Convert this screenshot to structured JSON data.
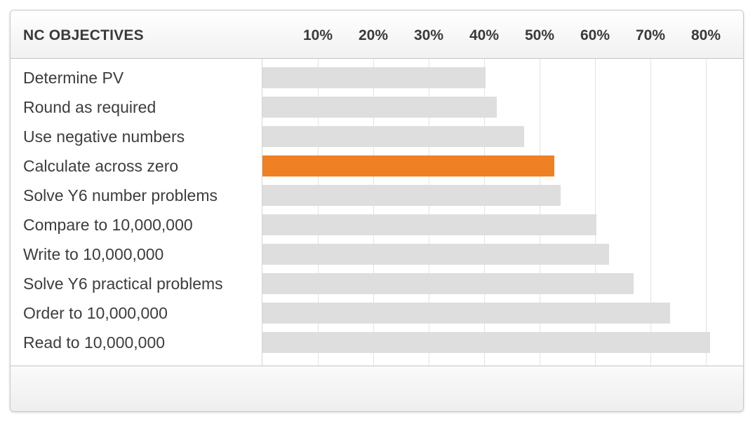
{
  "header": {
    "title": "NC OBJECTIVES"
  },
  "chart_data": {
    "type": "bar",
    "orientation": "horizontal",
    "xlim": [
      0,
      80
    ],
    "ticks": [
      {
        "value": 10,
        "label": "10%"
      },
      {
        "value": 20,
        "label": "20%"
      },
      {
        "value": 30,
        "label": "30%"
      },
      {
        "value": 40,
        "label": "40%"
      },
      {
        "value": 50,
        "label": "50%"
      },
      {
        "value": 60,
        "label": "60%"
      },
      {
        "value": 70,
        "label": "70%"
      },
      {
        "value": 80,
        "label": "80%"
      }
    ],
    "grid": true,
    "highlight_color": "#f08024",
    "bar_color": "#dedede",
    "categories": [
      "Determine PV",
      "Round as required",
      "Use negative numbers",
      "Calculate across zero",
      "Solve Y6 number problems",
      "Compare to 10,000,000",
      "Write to 10,000,000",
      "Solve Y6 practical problems",
      "Order to 10,000,000",
      "Read to 10,000,000"
    ],
    "values": [
      40.3,
      42.3,
      47.2,
      52.6,
      53.8,
      60.2,
      62.5,
      67.0,
      73.6,
      80.7
    ],
    "highlighted": [
      false,
      false,
      false,
      true,
      false,
      false,
      false,
      false,
      false,
      false
    ]
  }
}
